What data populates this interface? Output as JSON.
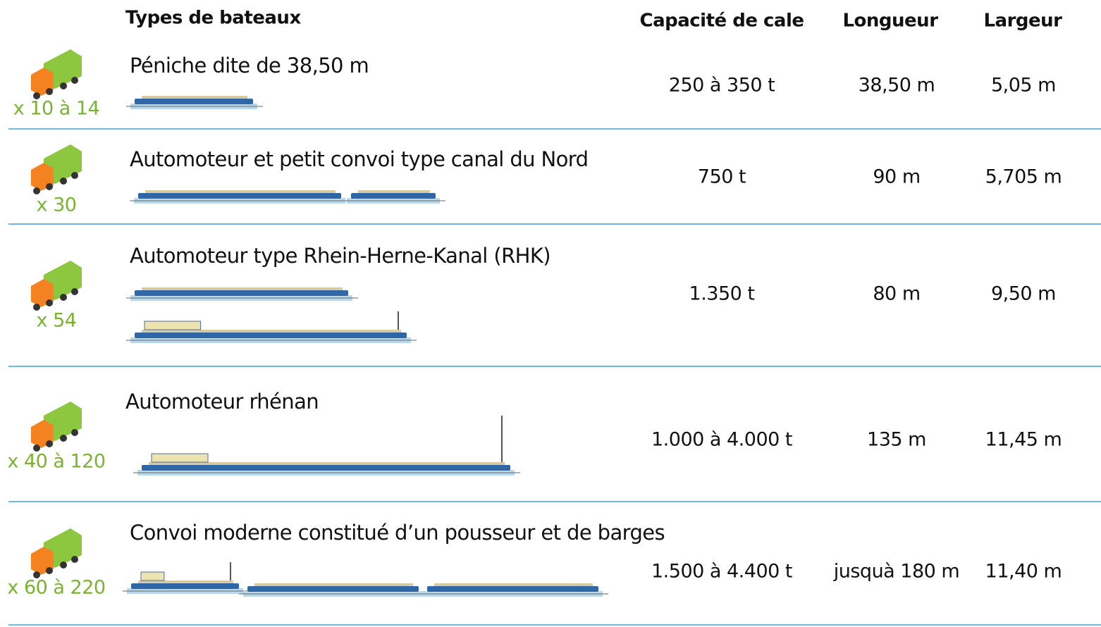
{
  "header": {
    "title": "Types de bateaux",
    "columns": [
      "Capacité de cale",
      "Longueur",
      "Largeur"
    ]
  },
  "rows": [
    {
      "trucks": "x 10 à 14",
      "name": "Péniche dite de 38,50 m",
      "capacity": "250 à 350 t",
      "length": "38,50 m",
      "width": "5,05 m"
    },
    {
      "trucks": "x 30",
      "name": "Automoteur et petit convoi type canal du Nord",
      "capacity": "750 t",
      "length": "90 m",
      "width": "5,705 m"
    },
    {
      "trucks": "x 54",
      "name": "Automoteur type Rhein-Herne-Kanal (RHK)",
      "capacity": "1.350 t",
      "length": "80 m",
      "width": "9,50 m"
    },
    {
      "trucks": "x 40 à 120",
      "name": "Automoteur rhénan",
      "capacity": "1.000 à 4.000 t",
      "length": "135 m",
      "width": "11,45 m"
    },
    {
      "trucks": "x 60 à 220",
      "name": "Convoi moderne constitué d’un pousseur et de barges",
      "capacity": "1.500 à 4.400 t",
      "length": "jusquà 180 m",
      "width": "11,40 m"
    }
  ]
}
